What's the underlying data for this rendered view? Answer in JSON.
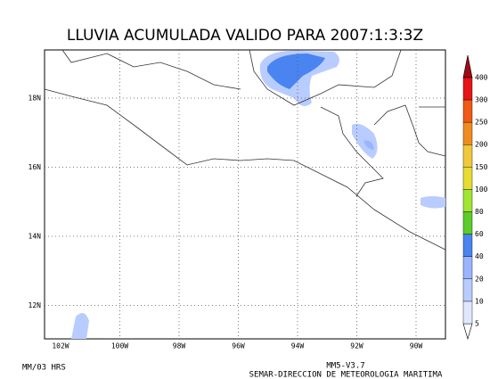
{
  "title": "LLUVIA ACUMULADA VALIDO PARA 2007:1:3:3Z",
  "lon_labels": [
    "102W",
    "100W",
    "98W",
    "96W",
    "94W",
    "92W",
    "90W"
  ],
  "lat_labels": [
    "18N",
    "16N",
    "14N",
    "12N"
  ],
  "colorbar": {
    "levels": [
      5,
      10,
      20,
      40,
      60,
      80,
      100,
      150,
      200,
      250,
      300,
      400
    ],
    "colors": [
      "#e0e8ff",
      "#b8ccff",
      "#9ab4ff",
      "#4a84f0",
      "#5ccc28",
      "#a0e632",
      "#e6dc32",
      "#f0c83c",
      "#f08c1e",
      "#f05a14",
      "#e61414",
      "#a00a14"
    ]
  },
  "footer_left": "MM/03 HRS",
  "footer_right": [
    "MM5-V3.7",
    "SEMAR-DIRECCION DE METEOROLOGIA MARITIMA"
  ]
}
